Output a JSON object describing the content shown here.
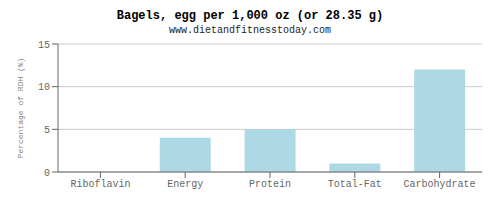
{
  "chart_data": {
    "type": "bar",
    "title": "Bagels, egg per 1,000 oz (or 28.35 g)",
    "subtitle": "www.dietandfitnesstoday.com",
    "categories": [
      "Riboflavin",
      "Energy",
      "Protein",
      "Total-Fat",
      "Carbohydrate"
    ],
    "values": [
      0.0,
      4.0,
      5.0,
      1.0,
      12.0
    ],
    "color": "#add8e6",
    "ylabel": "Percentage of RDH (%)",
    "ylim": [
      0,
      15
    ],
    "yticks": [
      0,
      5,
      10,
      15
    ],
    "grid": true
  }
}
